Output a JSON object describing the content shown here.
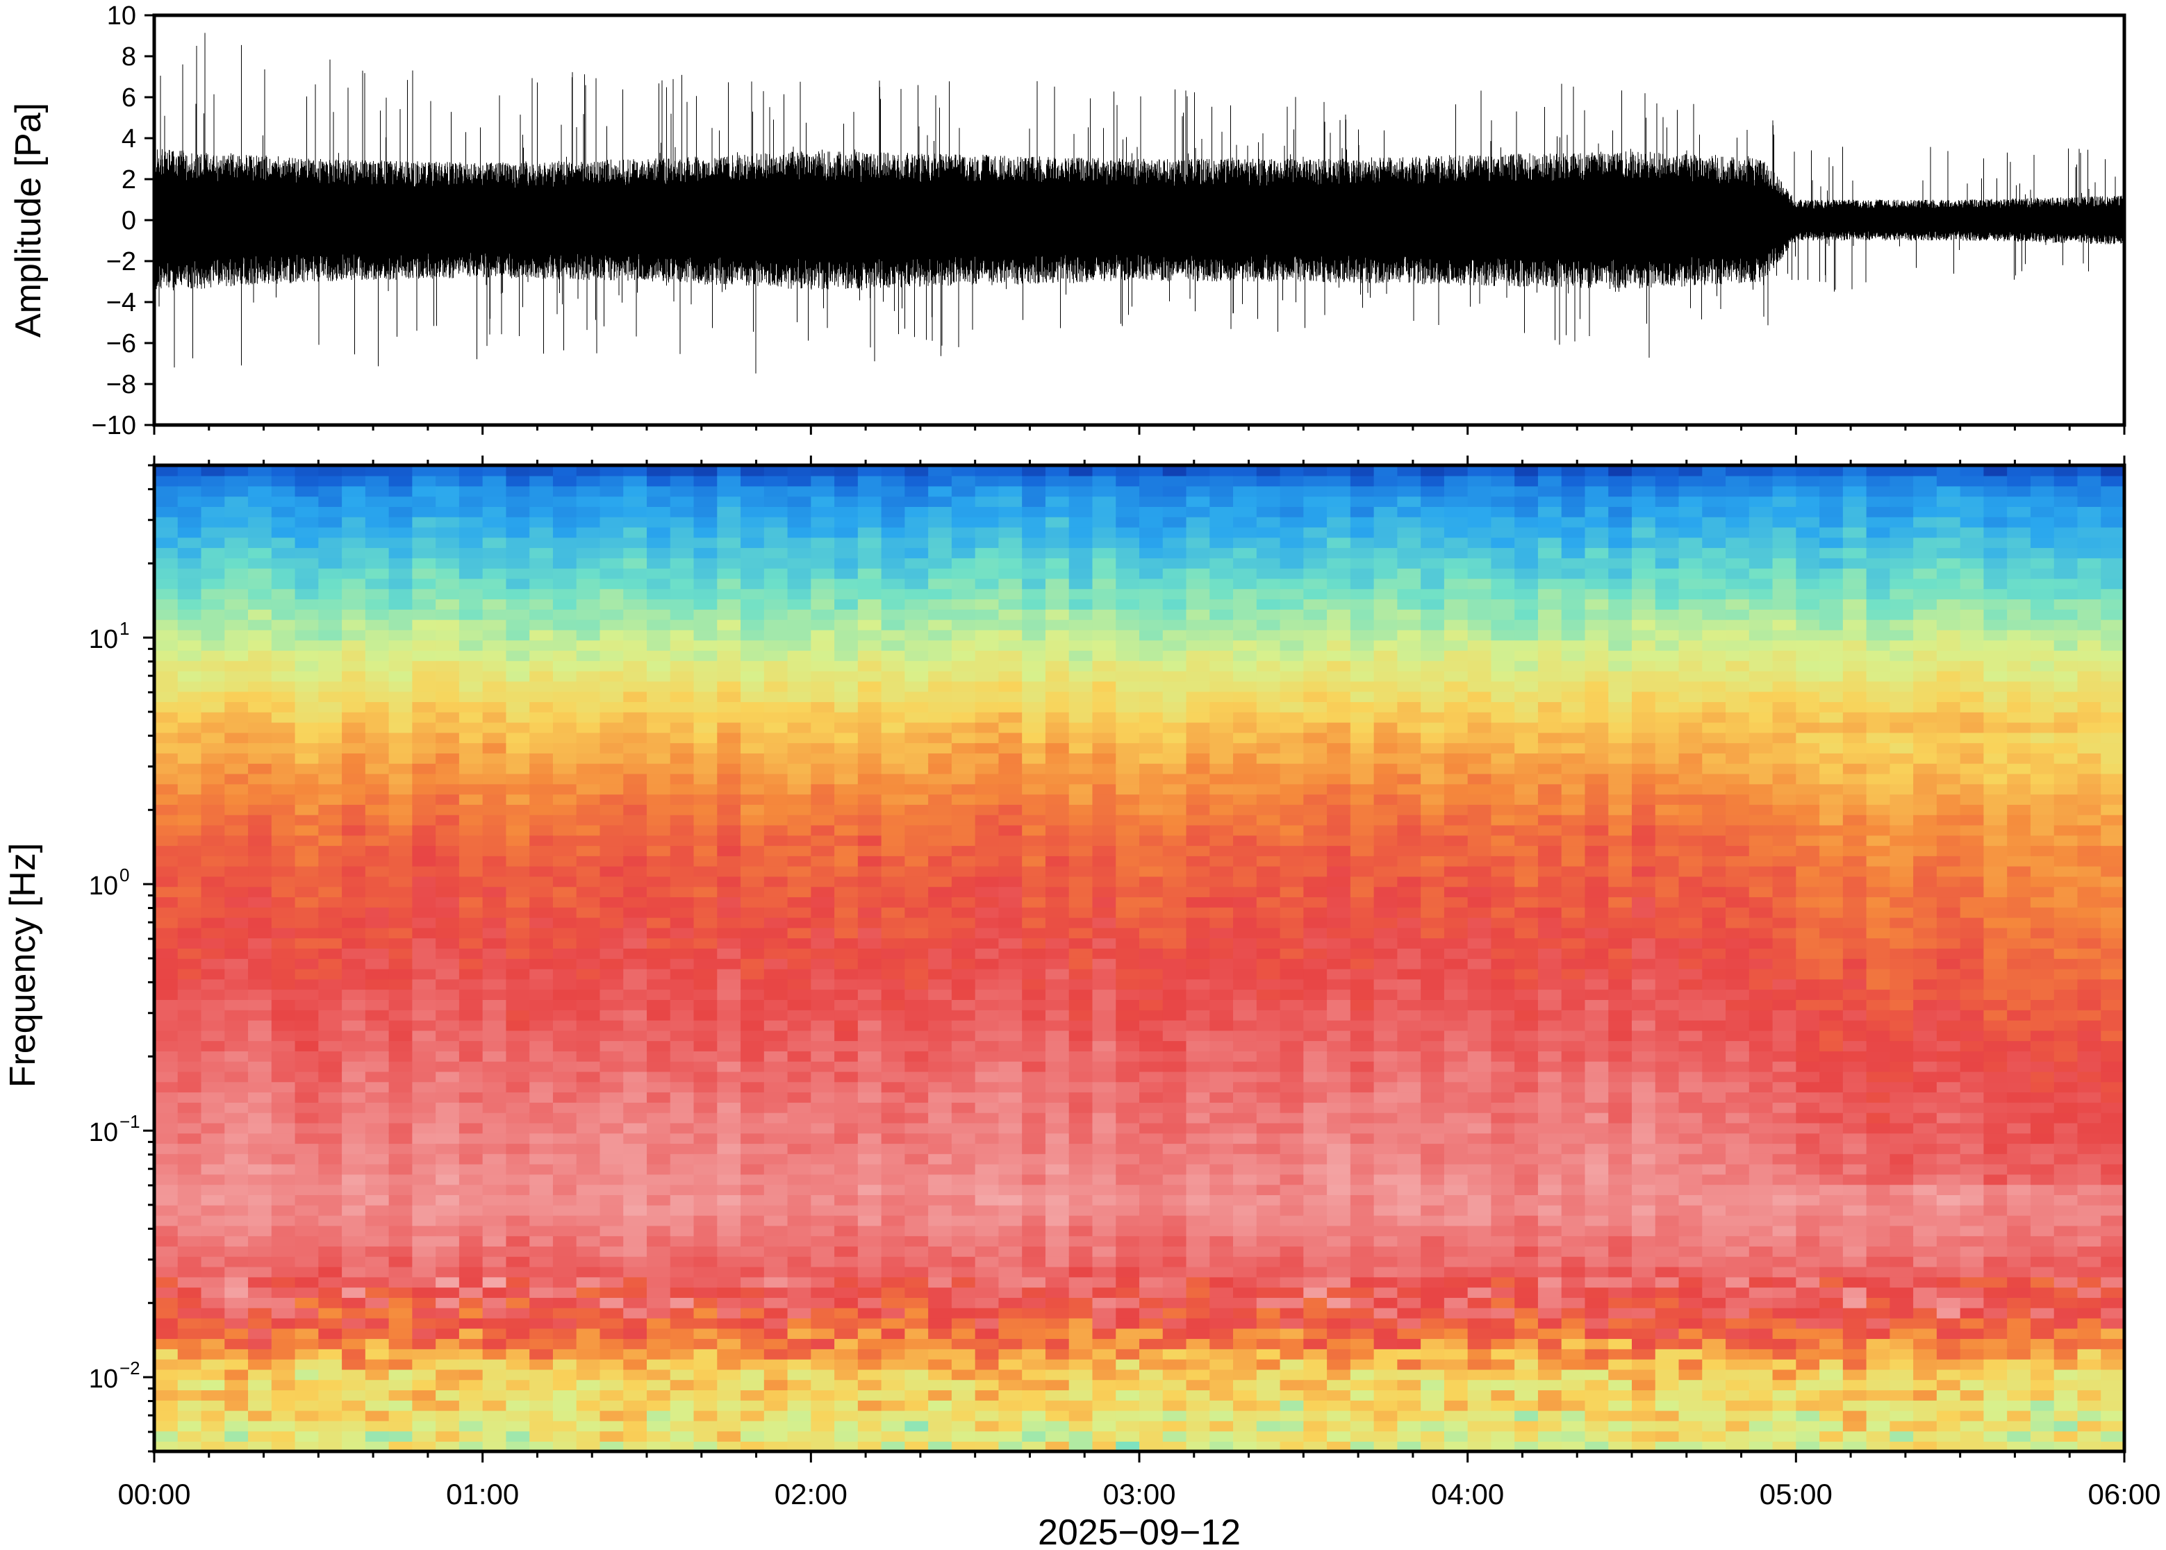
{
  "chart_data": [
    {
      "type": "line",
      "panel": "waveform",
      "ylabel": "Amplitude [Pa]",
      "ylim": [
        -10,
        10
      ],
      "yticks": [
        -10,
        -8,
        -6,
        -4,
        -2,
        0,
        2,
        4,
        6,
        8,
        10
      ],
      "ytick_labels": [
        "−10",
        "−8",
        "−6",
        "−4",
        "−2",
        "0",
        "2",
        "4",
        "6",
        "8",
        "10"
      ],
      "x_hours": [
        0,
        0.5,
        1,
        1.5,
        2,
        2.5,
        3,
        3.5,
        4,
        4.5,
        4.9,
        5.0,
        5.5,
        6.0
      ],
      "envelope_typical": [
        3.5,
        3.0,
        2.8,
        3.0,
        3.4,
        3.2,
        3.0,
        3.0,
        3.2,
        3.4,
        3.0,
        1.0,
        1.0,
        1.2
      ],
      "envelope_peak": [
        10,
        8,
        7.5,
        7,
        8,
        7,
        6.5,
        6,
        6.5,
        7,
        6,
        4,
        3.5,
        3.5
      ],
      "color": "#000000"
    },
    {
      "type": "heatmap",
      "panel": "spectrogram",
      "ylabel": "Frequency [Hz]",
      "yscale": "log",
      "ylim": [
        0.005,
        50
      ],
      "ytick_values": [
        0.01,
        0.1,
        1,
        10
      ],
      "ytick_labels": [
        {
          "base": "10",
          "exp": "−2"
        },
        {
          "base": "10",
          "exp": "−1"
        },
        {
          "base": "10",
          "exp": "0"
        },
        {
          "base": "10",
          "exp": "1"
        }
      ],
      "xlim_hours": [
        0,
        6
      ],
      "xticks": [
        "00:00",
        "01:00",
        "02:00",
        "03:00",
        "04:00",
        "05:00",
        "06:00"
      ],
      "xlabel": "2025−09−12",
      "colormap": [
        "#0a1a8c",
        "#1565d8",
        "#2aa7ee",
        "#6ee0c8",
        "#d8f08c",
        "#f9d35a",
        "#f5893c",
        "#e84545",
        "#f08a8a",
        "#f7c3c3"
      ]
    }
  ]
}
